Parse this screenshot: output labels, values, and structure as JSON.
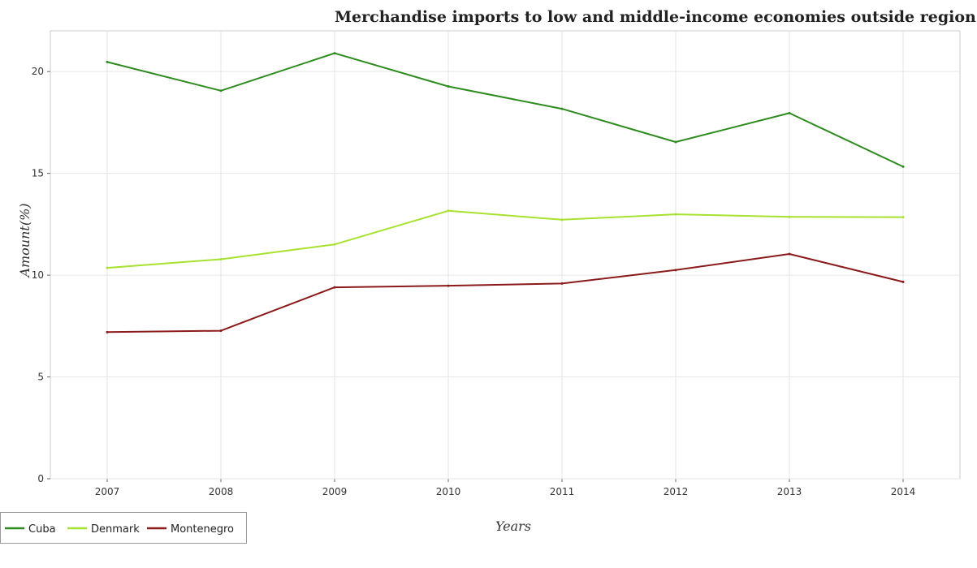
{
  "chart_data": {
    "type": "line",
    "title": "Merchandise imports to low and middle-income economies outside region",
    "xlabel": "Years",
    "ylabel": "Amount(%)",
    "categories": [
      "2007",
      "2008",
      "2009",
      "2010",
      "2011",
      "2012",
      "2013",
      "2014"
    ],
    "ylim": [
      0,
      22
    ],
    "yticks": [
      0,
      5,
      10,
      15,
      20
    ],
    "ytick_labels": [
      "0",
      "5",
      "10",
      "15",
      "20"
    ],
    "grid": true,
    "legend_position": "bottom-left",
    "series": [
      {
        "name": "Cuba",
        "color": "#2e8b1f",
        "values": [
          20.47,
          19.06,
          20.9,
          19.27,
          18.17,
          16.54,
          17.96,
          15.33
        ]
      },
      {
        "name": "Denmark",
        "color": "#a6e22e",
        "values": [
          10.36,
          10.78,
          11.51,
          13.16,
          12.72,
          12.99,
          12.86,
          12.85
        ]
      },
      {
        "name": "Montenegro",
        "color": "#8b1a1a",
        "values": [
          7.2,
          7.27,
          9.4,
          9.48,
          9.59,
          10.25,
          11.04,
          9.67
        ]
      }
    ]
  }
}
